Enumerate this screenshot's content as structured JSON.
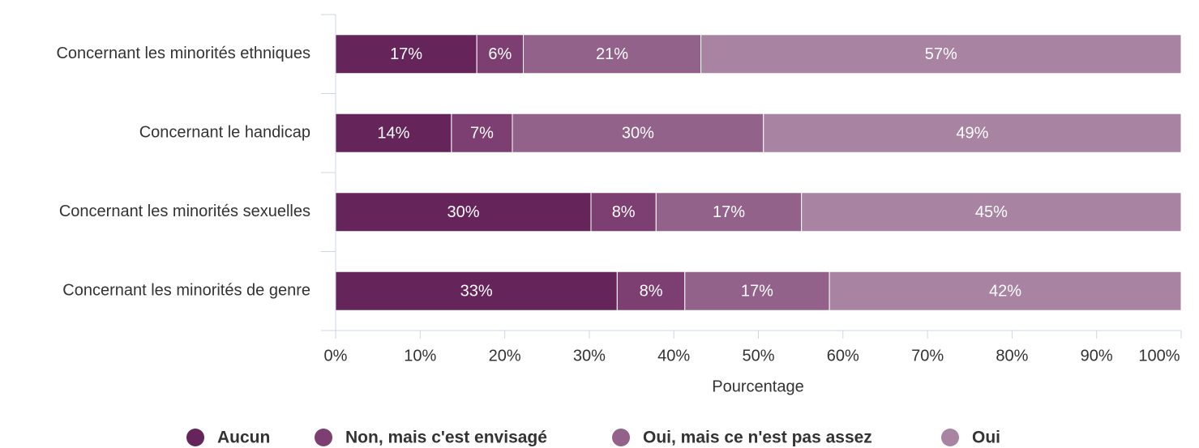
{
  "chart_data": {
    "type": "stacked_bar_horizontal",
    "categories": [
      "Concernant les minorités ethniques",
      "Concernant le handicap",
      "Concernant les minorités sexuelles",
      "Concernant les minorités de genre"
    ],
    "series": [
      {
        "name": "Aucun",
        "color": "#65245a",
        "values": [
          16.7,
          13.7,
          30.2,
          33.3
        ],
        "value_labels": [
          "17%",
          "14%",
          "30%",
          "33%"
        ]
      },
      {
        "name": "Non, mais c'est envisagé",
        "color": "#7d3e71",
        "values": [
          5.5,
          7.2,
          7.7,
          8.0
        ],
        "value_labels": [
          "6%",
          "7%",
          "8%",
          "8%"
        ]
      },
      {
        "name": "Oui, mais ce n'est pas assez",
        "color": "#93628a",
        "values": [
          21.0,
          29.7,
          17.2,
          17.1
        ],
        "value_labels": [
          "21%",
          "30%",
          "17%",
          "17%"
        ]
      },
      {
        "name": "Oui",
        "color": "#a983a2",
        "values": [
          56.8,
          49.4,
          44.9,
          41.6
        ],
        "value_labels": [
          "57%",
          "49%",
          "45%",
          "42%"
        ]
      }
    ],
    "xlabel": "Pourcentage",
    "xlim": [
      0,
      100
    ],
    "xticks": [
      {
        "value": 0,
        "label": "0%"
      },
      {
        "value": 10,
        "label": "10%"
      },
      {
        "value": 20,
        "label": "20%"
      },
      {
        "value": 30,
        "label": "30%"
      },
      {
        "value": 40,
        "label": "40%"
      },
      {
        "value": 50,
        "label": "50%"
      },
      {
        "value": 60,
        "label": "60%"
      },
      {
        "value": 70,
        "label": "70%"
      },
      {
        "value": 80,
        "label": "80%"
      },
      {
        "value": 90,
        "label": "90%"
      },
      {
        "value": 100,
        "label": "100%"
      }
    ],
    "legend": "bottom"
  }
}
